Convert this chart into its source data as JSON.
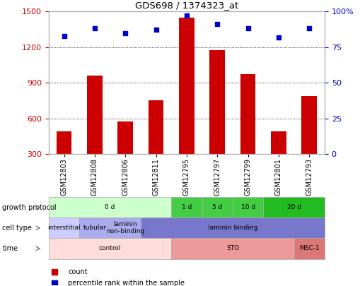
{
  "title": "GDS698 / 1374323_at",
  "samples": [
    "GSM12803",
    "GSM12808",
    "GSM12806",
    "GSM12811",
    "GSM12795",
    "GSM12797",
    "GSM12799",
    "GSM12801",
    "GSM12793"
  ],
  "counts": [
    490,
    960,
    575,
    755,
    1450,
    1175,
    970,
    490,
    790
  ],
  "percentiles": [
    83,
    88,
    85,
    87,
    97,
    91,
    88,
    82,
    88
  ],
  "bar_color": "#cc0000",
  "dot_color": "#0000cc",
  "ylim_left": [
    300,
    1500
  ],
  "ylim_right": [
    0,
    100
  ],
  "yticks_left": [
    300,
    600,
    900,
    1200,
    1500
  ],
  "yticks_right": [
    0,
    25,
    50,
    75,
    100
  ],
  "left_tick_color": "#cc0000",
  "right_tick_color": "#0000cc",
  "time_labels": [
    {
      "label": "0 d",
      "start": 0,
      "end": 4,
      "color": "#ccffcc"
    },
    {
      "label": "1 d",
      "start": 4,
      "end": 5,
      "color": "#44cc44"
    },
    {
      "label": "5 d",
      "start": 5,
      "end": 6,
      "color": "#44cc44"
    },
    {
      "label": "10 d",
      "start": 6,
      "end": 7,
      "color": "#44cc44"
    },
    {
      "label": "20 d",
      "start": 7,
      "end": 9,
      "color": "#22bb22"
    }
  ],
  "cell_type_labels": [
    {
      "label": "interstitial",
      "start": 0,
      "end": 1,
      "color": "#ccccff"
    },
    {
      "label": "tubular",
      "start": 1,
      "end": 2,
      "color": "#aaaaee"
    },
    {
      "label": "laminin\nnon-binding",
      "start": 2,
      "end": 3,
      "color": "#aaaaee"
    },
    {
      "label": "laminin binding",
      "start": 3,
      "end": 9,
      "color": "#7777cc"
    }
  ],
  "growth_protocol_labels": [
    {
      "label": "control",
      "start": 0,
      "end": 4,
      "color": "#ffdddd"
    },
    {
      "label": "STO",
      "start": 4,
      "end": 8,
      "color": "#ee9999"
    },
    {
      "label": "MSC-1",
      "start": 8,
      "end": 9,
      "color": "#dd7777"
    }
  ],
  "row_labels": [
    "time",
    "cell type",
    "growth protocol"
  ],
  "legend_items": [
    {
      "color": "#cc0000",
      "label": "count"
    },
    {
      "color": "#0000cc",
      "label": "percentile rank within the sample"
    }
  ],
  "bg_color": "#ffffff",
  "border_color": "#aaaaaa"
}
